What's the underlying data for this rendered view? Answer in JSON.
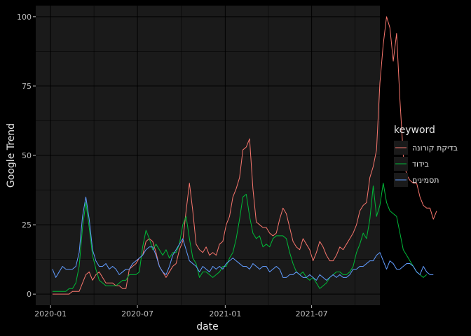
{
  "chart_data": {
    "type": "line",
    "title": "",
    "xlabel": "date",
    "ylabel": "Google Trend",
    "xlim": [
      "2019-12-01",
      "2021-11-21"
    ],
    "ylim": [
      -4,
      104
    ],
    "x_ticks": [
      {
        "date": "2020-01-01",
        "label": "2020-01"
      },
      {
        "date": "2020-07-01",
        "label": "2020-07"
      },
      {
        "date": "2021-01-01",
        "label": "2021-01"
      },
      {
        "date": "2021-07-01",
        "label": "2021-07"
      }
    ],
    "y_ticks": [
      0,
      25,
      50,
      75,
      100
    ],
    "grid": true,
    "legend": {
      "title": "keyword",
      "position": "right"
    },
    "x_start": "2020-01-05",
    "x_step_days": 7,
    "series": [
      {
        "name": "בדיקת קורונה",
        "color": "#F8766D",
        "values": [
          0,
          0,
          0,
          0,
          0,
          0,
          1,
          1,
          1,
          4,
          7,
          8,
          5,
          7,
          8,
          6,
          4,
          4,
          4,
          3,
          3,
          2,
          2,
          9,
          10,
          11,
          13,
          14,
          19,
          20,
          19,
          15,
          10,
          8,
          6,
          8,
          10,
          11,
          16,
          19,
          30,
          40,
          30,
          18,
          16,
          15,
          17,
          14,
          15,
          14,
          18,
          19,
          25,
          28,
          35,
          38,
          42,
          52,
          53,
          56,
          38,
          26,
          25,
          24,
          24,
          22,
          21,
          22,
          27,
          31,
          29,
          24,
          19,
          17,
          16,
          20,
          18,
          16,
          12,
          15,
          19,
          17,
          14,
          12,
          12,
          14,
          17,
          16,
          18,
          20,
          22,
          25,
          30,
          32,
          33,
          42,
          46,
          52,
          76,
          90,
          100,
          96,
          84,
          94,
          70,
          50,
          43,
          41,
          40,
          40,
          35,
          32,
          31,
          31,
          27,
          30
        ]
      },
      {
        "name": "בידוד",
        "color": "#00BA38",
        "values": [
          1,
          1,
          1,
          1,
          1,
          2,
          2,
          4,
          10,
          24,
          33,
          24,
          14,
          9,
          5,
          4,
          3,
          3,
          3,
          3,
          4,
          5,
          5,
          7,
          7,
          7,
          8,
          17,
          23,
          20,
          16,
          18,
          16,
          14,
          16,
          13,
          15,
          15,
          18,
          25,
          28,
          20,
          13,
          11,
          6,
          8,
          8,
          7,
          6,
          7,
          8,
          10,
          10,
          13,
          15,
          20,
          27,
          35,
          36,
          28,
          22,
          20,
          21,
          17,
          18,
          17,
          20,
          21,
          21,
          21,
          20,
          15,
          11,
          8,
          7,
          8,
          6,
          5,
          6,
          4,
          2,
          3,
          4,
          6,
          7,
          8,
          8,
          7,
          7,
          8,
          10,
          15,
          18,
          22,
          20,
          27,
          39,
          28,
          32,
          40,
          33,
          30,
          29,
          28,
          22,
          16,
          14,
          12,
          10,
          8,
          7,
          6,
          7
        ]
      },
      {
        "name": "תסמינים",
        "color": "#619CFF",
        "values": [
          9,
          6,
          8,
          10,
          9,
          9,
          9,
          10,
          15,
          28,
          35,
          27,
          16,
          12,
          10,
          10,
          11,
          9,
          10,
          9,
          7,
          8,
          9,
          9,
          11,
          12,
          13,
          14,
          16,
          17,
          17,
          14,
          10,
          8,
          7,
          10,
          14,
          16,
          18,
          20,
          16,
          12,
          11,
          10,
          8,
          10,
          9,
          8,
          10,
          9,
          10,
          9,
          11,
          12,
          13,
          12,
          11,
          10,
          10,
          9,
          11,
          10,
          9,
          10,
          10,
          8,
          9,
          10,
          9,
          6,
          6,
          7,
          7,
          8,
          7,
          6,
          6,
          7,
          6,
          5,
          7,
          6,
          5,
          6,
          7,
          6,
          7,
          6,
          6,
          7,
          9,
          9,
          10,
          10,
          11,
          12,
          12,
          14,
          15,
          12,
          9,
          12,
          11,
          9,
          9,
          10,
          11,
          11,
          10,
          8,
          7,
          10,
          8,
          7,
          7
        ]
      }
    ]
  }
}
